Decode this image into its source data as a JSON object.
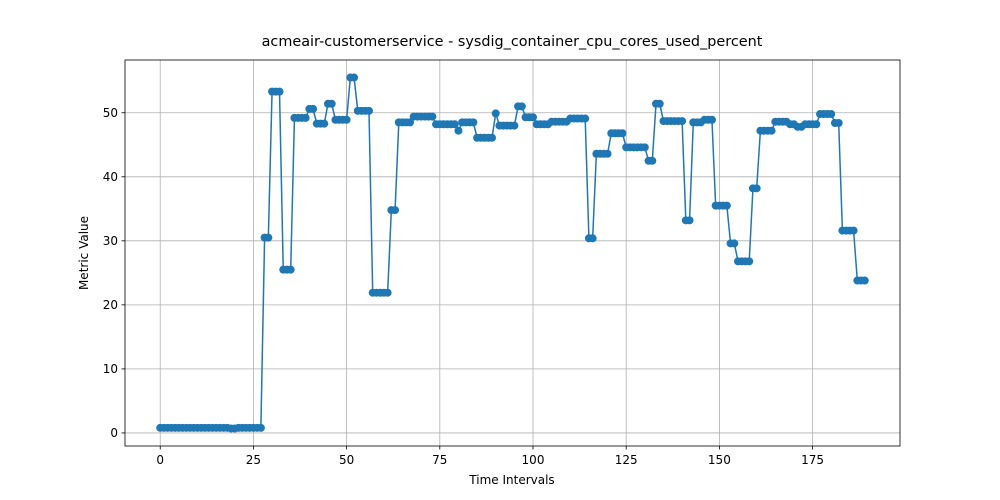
{
  "chart_data": {
    "type": "line",
    "title": "acmeair-customerservice - sysdig_container_cpu_cores_used_percent",
    "x_label": "Time Intervals",
    "y_label": "Metric Value",
    "x": [
      0,
      1,
      2,
      3,
      4,
      5,
      6,
      7,
      8,
      9,
      10,
      11,
      12,
      13,
      14,
      15,
      16,
      17,
      18,
      19,
      20,
      21,
      22,
      23,
      24,
      25,
      26,
      27,
      28,
      29,
      30,
      31,
      32,
      33,
      34,
      35,
      36,
      37,
      38,
      39,
      40,
      41,
      42,
      43,
      44,
      45,
      46,
      47,
      48,
      49,
      50,
      51,
      52,
      53,
      54,
      55,
      56,
      57,
      58,
      59,
      60,
      61,
      62,
      63,
      64,
      65,
      66,
      67,
      68,
      69,
      70,
      71,
      72,
      73,
      74,
      75,
      76,
      77,
      78,
      79,
      80,
      81,
      82,
      83,
      84,
      85,
      86,
      87,
      88,
      89,
      90,
      91,
      92,
      93,
      94,
      95,
      96,
      97,
      98,
      99,
      100,
      101,
      102,
      103,
      104,
      105,
      106,
      107,
      108,
      109,
      110,
      111,
      112,
      113,
      114,
      115,
      116,
      117,
      118,
      119,
      120,
      121,
      122,
      123,
      124,
      125,
      126,
      127,
      128,
      129,
      130,
      131,
      132,
      133,
      134,
      135,
      136,
      137,
      138,
      139,
      140,
      141,
      142,
      143,
      144,
      145,
      146,
      147,
      148,
      149,
      150,
      151,
      152,
      153,
      154,
      155,
      156,
      157,
      158,
      159,
      160,
      161,
      162,
      163,
      164,
      165,
      166,
      167,
      168,
      169,
      170,
      171,
      172,
      173,
      174,
      175,
      176,
      177,
      178,
      179,
      180,
      181,
      182,
      183,
      184,
      185,
      186,
      187,
      188,
      189
    ],
    "series": [
      {
        "name": "acmeair-customerservice",
        "color": "#1f77b4",
        "values": [
          0.8,
          0.8,
          0.8,
          0.8,
          0.8,
          0.8,
          0.8,
          0.8,
          0.8,
          0.8,
          0.8,
          0.8,
          0.8,
          0.8,
          0.8,
          0.8,
          0.8,
          0.8,
          0.8,
          0.7,
          0.7,
          0.8,
          0.8,
          0.8,
          0.8,
          0.8,
          0.8,
          0.8,
          30.5,
          30.5,
          53.3,
          53.3,
          53.3,
          25.5,
          25.5,
          25.5,
          49.2,
          49.2,
          49.2,
          49.2,
          50.6,
          50.6,
          48.3,
          48.3,
          48.3,
          51.4,
          51.4,
          48.9,
          48.9,
          48.9,
          48.9,
          55.5,
          55.5,
          50.3,
          50.3,
          50.3,
          50.3,
          21.9,
          21.9,
          21.9,
          21.9,
          21.9,
          34.8,
          34.8,
          48.5,
          48.5,
          48.5,
          48.5,
          49.4,
          49.4,
          49.4,
          49.4,
          49.4,
          49.4,
          48.2,
          48.2,
          48.2,
          48.2,
          48.2,
          48.2,
          47.2,
          48.5,
          48.5,
          48.5,
          48.5,
          46.1,
          46.1,
          46.1,
          46.1,
          46.1,
          49.9,
          48.0,
          48.0,
          48.0,
          48.0,
          48.0,
          51.0,
          51.0,
          49.3,
          49.3,
          49.3,
          48.2,
          48.2,
          48.2,
          48.2,
          48.6,
          48.6,
          48.6,
          48.6,
          48.6,
          49.1,
          49.1,
          49.1,
          49.1,
          49.1,
          30.4,
          30.4,
          43.6,
          43.6,
          43.6,
          43.6,
          46.8,
          46.8,
          46.8,
          46.8,
          44.6,
          44.6,
          44.6,
          44.6,
          44.6,
          44.6,
          42.5,
          42.5,
          51.4,
          51.4,
          48.7,
          48.7,
          48.7,
          48.7,
          48.7,
          48.7,
          33.2,
          33.2,
          48.5,
          48.5,
          48.5,
          48.9,
          48.9,
          48.9,
          35.5,
          35.5,
          35.5,
          35.5,
          29.6,
          29.6,
          26.8,
          26.8,
          26.8,
          26.8,
          38.2,
          38.2,
          47.2,
          47.2,
          47.2,
          47.2,
          48.6,
          48.6,
          48.6,
          48.6,
          48.2,
          48.2,
          47.8,
          47.8,
          48.2,
          48.2,
          48.2,
          48.2,
          49.8,
          49.8,
          49.8,
          49.8,
          48.4,
          48.4,
          31.6,
          31.6,
          31.6,
          31.6,
          23.8,
          23.8,
          23.8
        ]
      }
    ],
    "xlim": [
      -9.45,
      198.45
    ],
    "ylim": [
      -2.04,
      58.24
    ],
    "xticks": [
      0,
      25,
      50,
      75,
      100,
      125,
      150,
      175
    ],
    "yticks": [
      0,
      10,
      20,
      30,
      40,
      50
    ],
    "grid": true
  }
}
